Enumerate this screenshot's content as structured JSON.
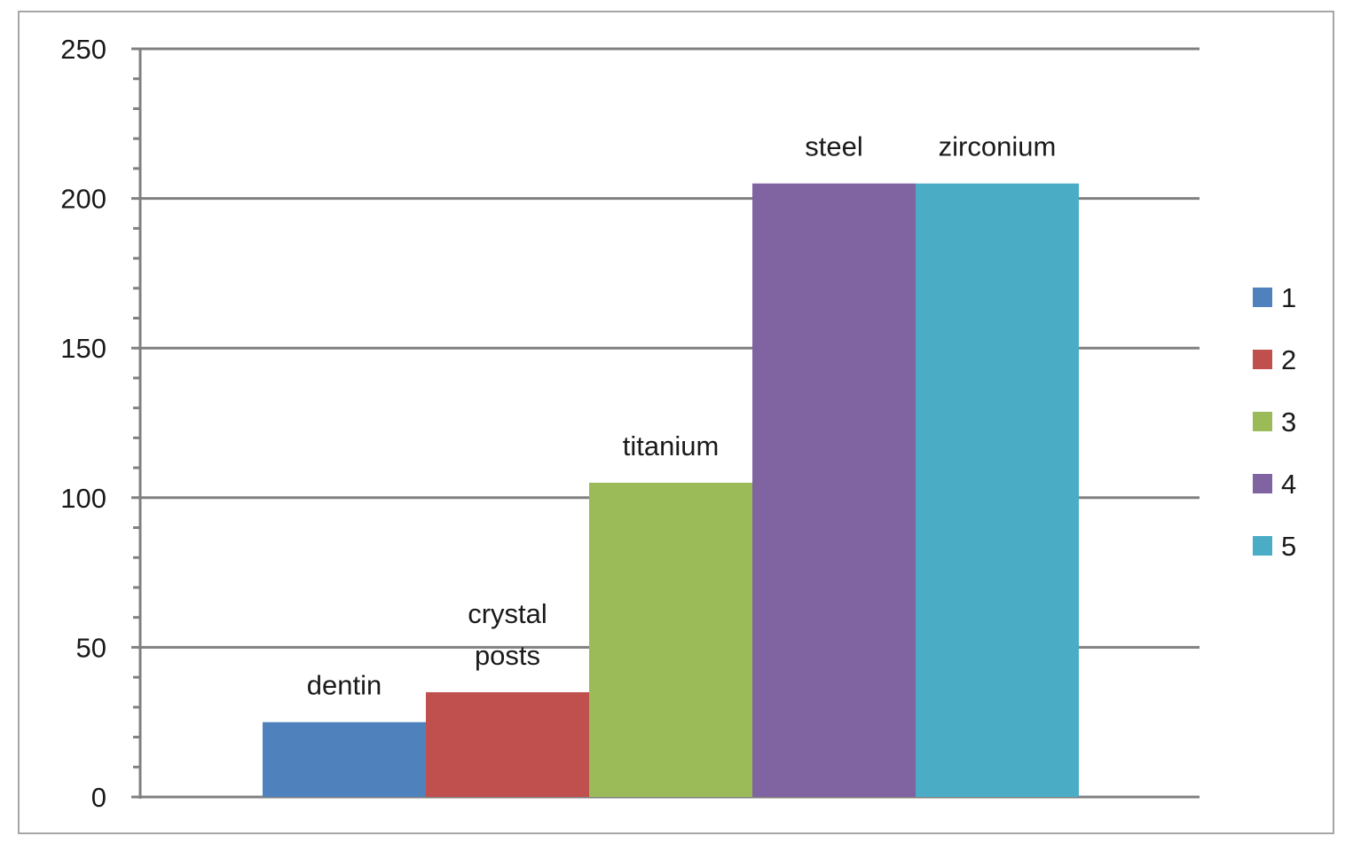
{
  "chart_data": {
    "type": "bar",
    "title": "",
    "xlabel": "",
    "ylabel": "",
    "ylim": [
      0,
      250
    ],
    "y_major_ticks": [
      0,
      50,
      100,
      150,
      200,
      250
    ],
    "y_minor_tick_step": 10,
    "grid": "horizontal-major",
    "legend_position": "right",
    "series": [
      {
        "name": "1",
        "label_lines": [
          "dentin"
        ],
        "value": 25,
        "color": "#4f81bd"
      },
      {
        "name": "2",
        "label_lines": [
          "crystal",
          "posts"
        ],
        "value": 35,
        "color": "#c0504d"
      },
      {
        "name": "3",
        "label_lines": [
          "titanium"
        ],
        "value": 105,
        "color": "#9bbb59"
      },
      {
        "name": "4",
        "label_lines": [
          "steel"
        ],
        "value": 205,
        "color": "#8064a2"
      },
      {
        "name": "5",
        "label_lines": [
          "zirconium"
        ],
        "value": 205,
        "color": "#4bacc6"
      }
    ]
  }
}
